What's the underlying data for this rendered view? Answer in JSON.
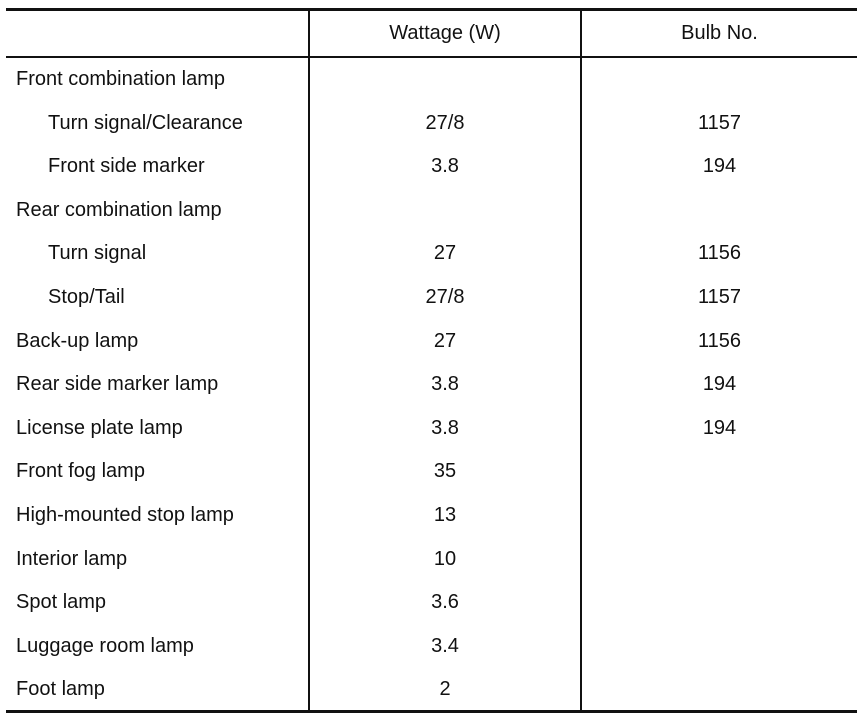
{
  "table": {
    "headers": {
      "item": "",
      "wattage": "Wattage (W)",
      "bulb_no": "Bulb No."
    },
    "rows": [
      {
        "item": "Front combination lamp",
        "wattage": "",
        "bulb_no": "",
        "indent": false
      },
      {
        "item": "Turn signal/Clearance",
        "wattage": "27/8",
        "bulb_no": "1157",
        "indent": true
      },
      {
        "item": "Front side marker",
        "wattage": "3.8",
        "bulb_no": "194",
        "indent": true
      },
      {
        "item": "Rear combination lamp",
        "wattage": "",
        "bulb_no": "",
        "indent": false
      },
      {
        "item": "Turn signal",
        "wattage": "27",
        "bulb_no": "1156",
        "indent": true
      },
      {
        "item": "Stop/Tail",
        "wattage": "27/8",
        "bulb_no": "1157",
        "indent": true
      },
      {
        "item": "Back-up lamp",
        "wattage": "27",
        "bulb_no": "1156",
        "indent": false
      },
      {
        "item": "Rear side marker lamp",
        "wattage": "3.8",
        "bulb_no": "194",
        "indent": false
      },
      {
        "item": "License plate lamp",
        "wattage": "3.8",
        "bulb_no": "194",
        "indent": false
      },
      {
        "item": "Front fog lamp",
        "wattage": "35",
        "bulb_no": "",
        "indent": false
      },
      {
        "item": "High-mounted stop lamp",
        "wattage": "13",
        "bulb_no": "",
        "indent": false
      },
      {
        "item": "Interior lamp",
        "wattage": "10",
        "bulb_no": "",
        "indent": false
      },
      {
        "item": "Spot lamp",
        "wattage": "3.6",
        "bulb_no": "",
        "indent": false
      },
      {
        "item": "Luggage room lamp",
        "wattage": "3.4",
        "bulb_no": "",
        "indent": false
      },
      {
        "item": "Foot lamp",
        "wattage": "2",
        "bulb_no": "",
        "indent": false
      }
    ]
  }
}
